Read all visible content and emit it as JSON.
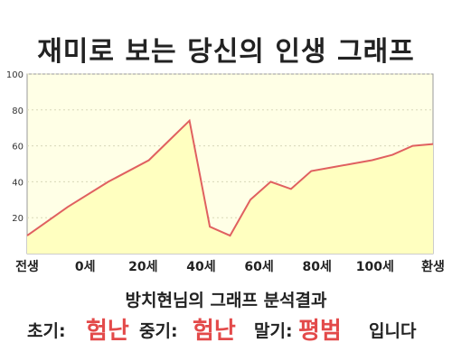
{
  "title": "재미로 보는 당신의 인생 그래프",
  "result": {
    "heading": "방치현님의 그래프 분석결과",
    "early_label": "초기:",
    "early_value": "험난",
    "middle_label": "중기:",
    "middle_value": "험난",
    "late_label": "말기:",
    "late_value": "평범",
    "ending": "입니다"
  },
  "colors": {
    "line": "#e06060",
    "fill": "#ffffc0",
    "plot_bg": "#ffffe6",
    "highlight_text": "#e34a4a"
  },
  "chart_data": {
    "type": "area",
    "title": "재미로 보는 당신의 인생 그래프",
    "x_categories": [
      "전생",
      "0세",
      "20세",
      "40세",
      "60세",
      "80세",
      "100세",
      "환생"
    ],
    "x": [
      0,
      1,
      2,
      3,
      3.5,
      4,
      4.5,
      5,
      5.5,
      6,
      6.5,
      7,
      7.5,
      8,
      8.5,
      9,
      9.5,
      10
    ],
    "y": [
      10,
      26,
      40,
      52,
      63,
      74,
      15,
      10,
      30,
      40,
      36,
      46,
      48,
      50,
      52,
      55,
      60,
      61
    ],
    "y_ticks": [
      20,
      40,
      60,
      80,
      100
    ],
    "ylim": [
      0,
      100
    ],
    "grid": true,
    "legend": "none"
  }
}
